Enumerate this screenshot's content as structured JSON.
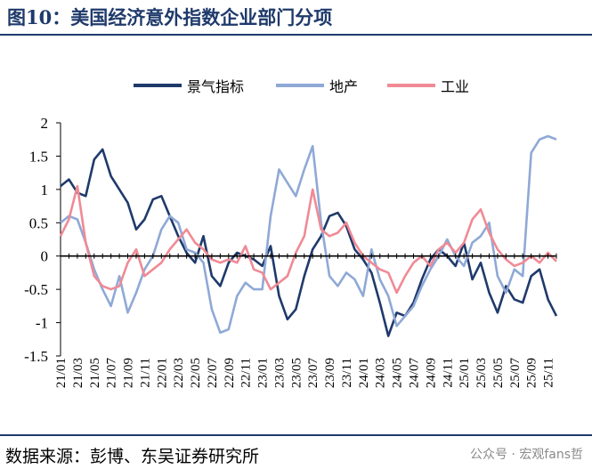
{
  "figure": {
    "title": "图10：美国经济意外指数企业部门分项",
    "source": "数据来源：彭博、东吴证券研究所",
    "watermark": "公众号 · 宏观fans哲"
  },
  "colors": {
    "frame": "#1f3a6b",
    "series_1": "#1f3a6b",
    "series_2": "#8fa9d6",
    "series_3": "#f08a95"
  },
  "chart_data": {
    "type": "line",
    "title": "",
    "xlabel": "",
    "ylabel": "",
    "ylim": [
      -1.5,
      2
    ],
    "yticks": [
      -1.5,
      -1,
      -0.5,
      0,
      0.5,
      1,
      1.5,
      2
    ],
    "ytick_labels": [
      "-1.5",
      "-1",
      "-0.5",
      "0",
      "0.5",
      "1",
      "1.5",
      "2"
    ],
    "x_ticks": [
      "21/01",
      "21/03",
      "21/05",
      "21/07",
      "21/09",
      "21/11",
      "22/01",
      "22/03",
      "22/05",
      "22/07",
      "22/09",
      "22/11",
      "23/01",
      "23/03",
      "23/05",
      "23/07",
      "23/09",
      "23/11",
      "24/01",
      "24/03",
      "24/05",
      "24/07",
      "24/09",
      "24/11",
      "25/01",
      "25/03",
      "25/05",
      "25/07",
      "25/09",
      "25/11"
    ],
    "x_range": [
      "2021-01",
      "2025-12"
    ],
    "legend_position": "top-center",
    "grid": false,
    "series": [
      {
        "name": "景气指标",
        "x": [
          "2021-01",
          "2021-02",
          "2021-03",
          "2021-04",
          "2021-05",
          "2021-06",
          "2021-07",
          "2021-08",
          "2021-09",
          "2021-10",
          "2021-11",
          "2021-12",
          "2022-01",
          "2022-02",
          "2022-03",
          "2022-04",
          "2022-05",
          "2022-06",
          "2022-07",
          "2022-08",
          "2022-09",
          "2022-10",
          "2022-11",
          "2022-12",
          "2023-01",
          "2023-02",
          "2023-03",
          "2023-04",
          "2023-05",
          "2023-06",
          "2023-07",
          "2023-08",
          "2023-09",
          "2023-10",
          "2023-11",
          "2023-12",
          "2024-01",
          "2024-02",
          "2024-03",
          "2024-04",
          "2024-05",
          "2024-06",
          "2024-07",
          "2024-08",
          "2024-09",
          "2024-10",
          "2024-11",
          "2024-12",
          "2025-01",
          "2025-02",
          "2025-03",
          "2025-04",
          "2025-05",
          "2025-06",
          "2025-07",
          "2025-08",
          "2025-09",
          "2025-10",
          "2025-11",
          "2025-12"
        ],
        "values": [
          1.05,
          1.15,
          0.95,
          0.9,
          1.45,
          1.6,
          1.2,
          1.0,
          0.8,
          0.4,
          0.55,
          0.85,
          0.9,
          0.6,
          0.3,
          0.05,
          -0.1,
          0.3,
          -0.3,
          -0.45,
          -0.1,
          0.05,
          0.0,
          -0.05,
          -0.15,
          0.15,
          -0.6,
          -0.95,
          -0.8,
          -0.3,
          0.1,
          0.3,
          0.6,
          0.65,
          0.45,
          0.1,
          -0.05,
          -0.25,
          -0.7,
          -1.2,
          -0.85,
          -0.9,
          -0.7,
          -0.35,
          -0.05,
          0.1,
          0.0,
          -0.15,
          0.2,
          -0.35,
          -0.1,
          -0.55,
          -0.85,
          -0.45,
          -0.65,
          -0.7,
          -0.3,
          -0.2,
          -0.65,
          -0.9
        ]
      },
      {
        "name": "地产",
        "x": [
          "2021-01",
          "2021-02",
          "2021-03",
          "2021-04",
          "2021-05",
          "2021-06",
          "2021-07",
          "2021-08",
          "2021-09",
          "2021-10",
          "2021-11",
          "2021-12",
          "2022-01",
          "2022-02",
          "2022-03",
          "2022-04",
          "2022-05",
          "2022-06",
          "2022-07",
          "2022-08",
          "2022-09",
          "2022-10",
          "2022-11",
          "2022-12",
          "2023-01",
          "2023-02",
          "2023-03",
          "2023-04",
          "2023-05",
          "2023-06",
          "2023-07",
          "2023-08",
          "2023-09",
          "2023-10",
          "2023-11",
          "2023-12",
          "2024-01",
          "2024-02",
          "2024-03",
          "2024-04",
          "2024-05",
          "2024-06",
          "2024-07",
          "2024-08",
          "2024-09",
          "2024-10",
          "2024-11",
          "2024-12",
          "2025-01",
          "2025-02",
          "2025-03",
          "2025-04",
          "2025-05",
          "2025-06",
          "2025-07",
          "2025-08",
          "2025-09",
          "2025-10",
          "2025-11",
          "2025-12"
        ],
        "values": [
          0.5,
          0.6,
          0.55,
          0.2,
          -0.2,
          -0.5,
          -0.75,
          -0.3,
          -0.85,
          -0.55,
          -0.2,
          0.0,
          0.4,
          0.6,
          0.5,
          0.1,
          0.05,
          -0.1,
          -0.8,
          -1.15,
          -1.1,
          -0.6,
          -0.4,
          -0.5,
          -0.5,
          0.6,
          1.3,
          1.1,
          0.9,
          1.3,
          1.65,
          0.5,
          -0.3,
          -0.45,
          -0.25,
          -0.35,
          -0.6,
          0.1,
          -0.35,
          -0.6,
          -1.05,
          -0.9,
          -0.75,
          -0.45,
          -0.2,
          0.0,
          0.25,
          0.0,
          -0.15,
          0.2,
          0.3,
          0.5,
          -0.3,
          -0.55,
          -0.2,
          -0.3,
          1.55,
          1.75,
          1.8,
          1.75
        ]
      },
      {
        "name": "工业",
        "x": [
          "2021-01",
          "2021-02",
          "2021-03",
          "2021-04",
          "2021-05",
          "2021-06",
          "2021-07",
          "2021-08",
          "2021-09",
          "2021-10",
          "2021-11",
          "2021-12",
          "2022-01",
          "2022-02",
          "2022-03",
          "2022-04",
          "2022-05",
          "2022-06",
          "2022-07",
          "2022-08",
          "2022-09",
          "2022-10",
          "2022-11",
          "2022-12",
          "2023-01",
          "2023-02",
          "2023-03",
          "2023-04",
          "2023-05",
          "2023-06",
          "2023-07",
          "2023-08",
          "2023-09",
          "2023-10",
          "2023-11",
          "2023-12",
          "2024-01",
          "2024-02",
          "2024-03",
          "2024-04",
          "2024-05",
          "2024-06",
          "2024-07",
          "2024-08",
          "2024-09",
          "2024-10",
          "2024-11",
          "2024-12",
          "2025-01",
          "2025-02",
          "2025-03",
          "2025-04",
          "2025-05",
          "2025-06",
          "2025-07",
          "2025-08",
          "2025-09",
          "2025-10",
          "2025-11",
          "2025-12"
        ],
        "values": [
          0.3,
          0.55,
          1.05,
          0.2,
          -0.3,
          -0.45,
          -0.5,
          -0.45,
          -0.1,
          0.1,
          -0.3,
          -0.2,
          -0.1,
          0.1,
          0.25,
          0.4,
          0.2,
          0.1,
          -0.05,
          -0.1,
          -0.05,
          -0.1,
          0.15,
          -0.2,
          -0.25,
          -0.5,
          -0.4,
          -0.3,
          0.05,
          0.3,
          1.0,
          0.4,
          0.3,
          0.35,
          0.5,
          0.2,
          0.0,
          -0.1,
          -0.2,
          -0.25,
          -0.55,
          -0.3,
          -0.1,
          0.0,
          -0.15,
          0.1,
          0.2,
          0.05,
          0.2,
          0.55,
          0.7,
          0.35,
          0.1,
          -0.05,
          -0.15,
          -0.1,
          0.0,
          -0.1,
          0.05,
          -0.08
        ]
      }
    ]
  }
}
